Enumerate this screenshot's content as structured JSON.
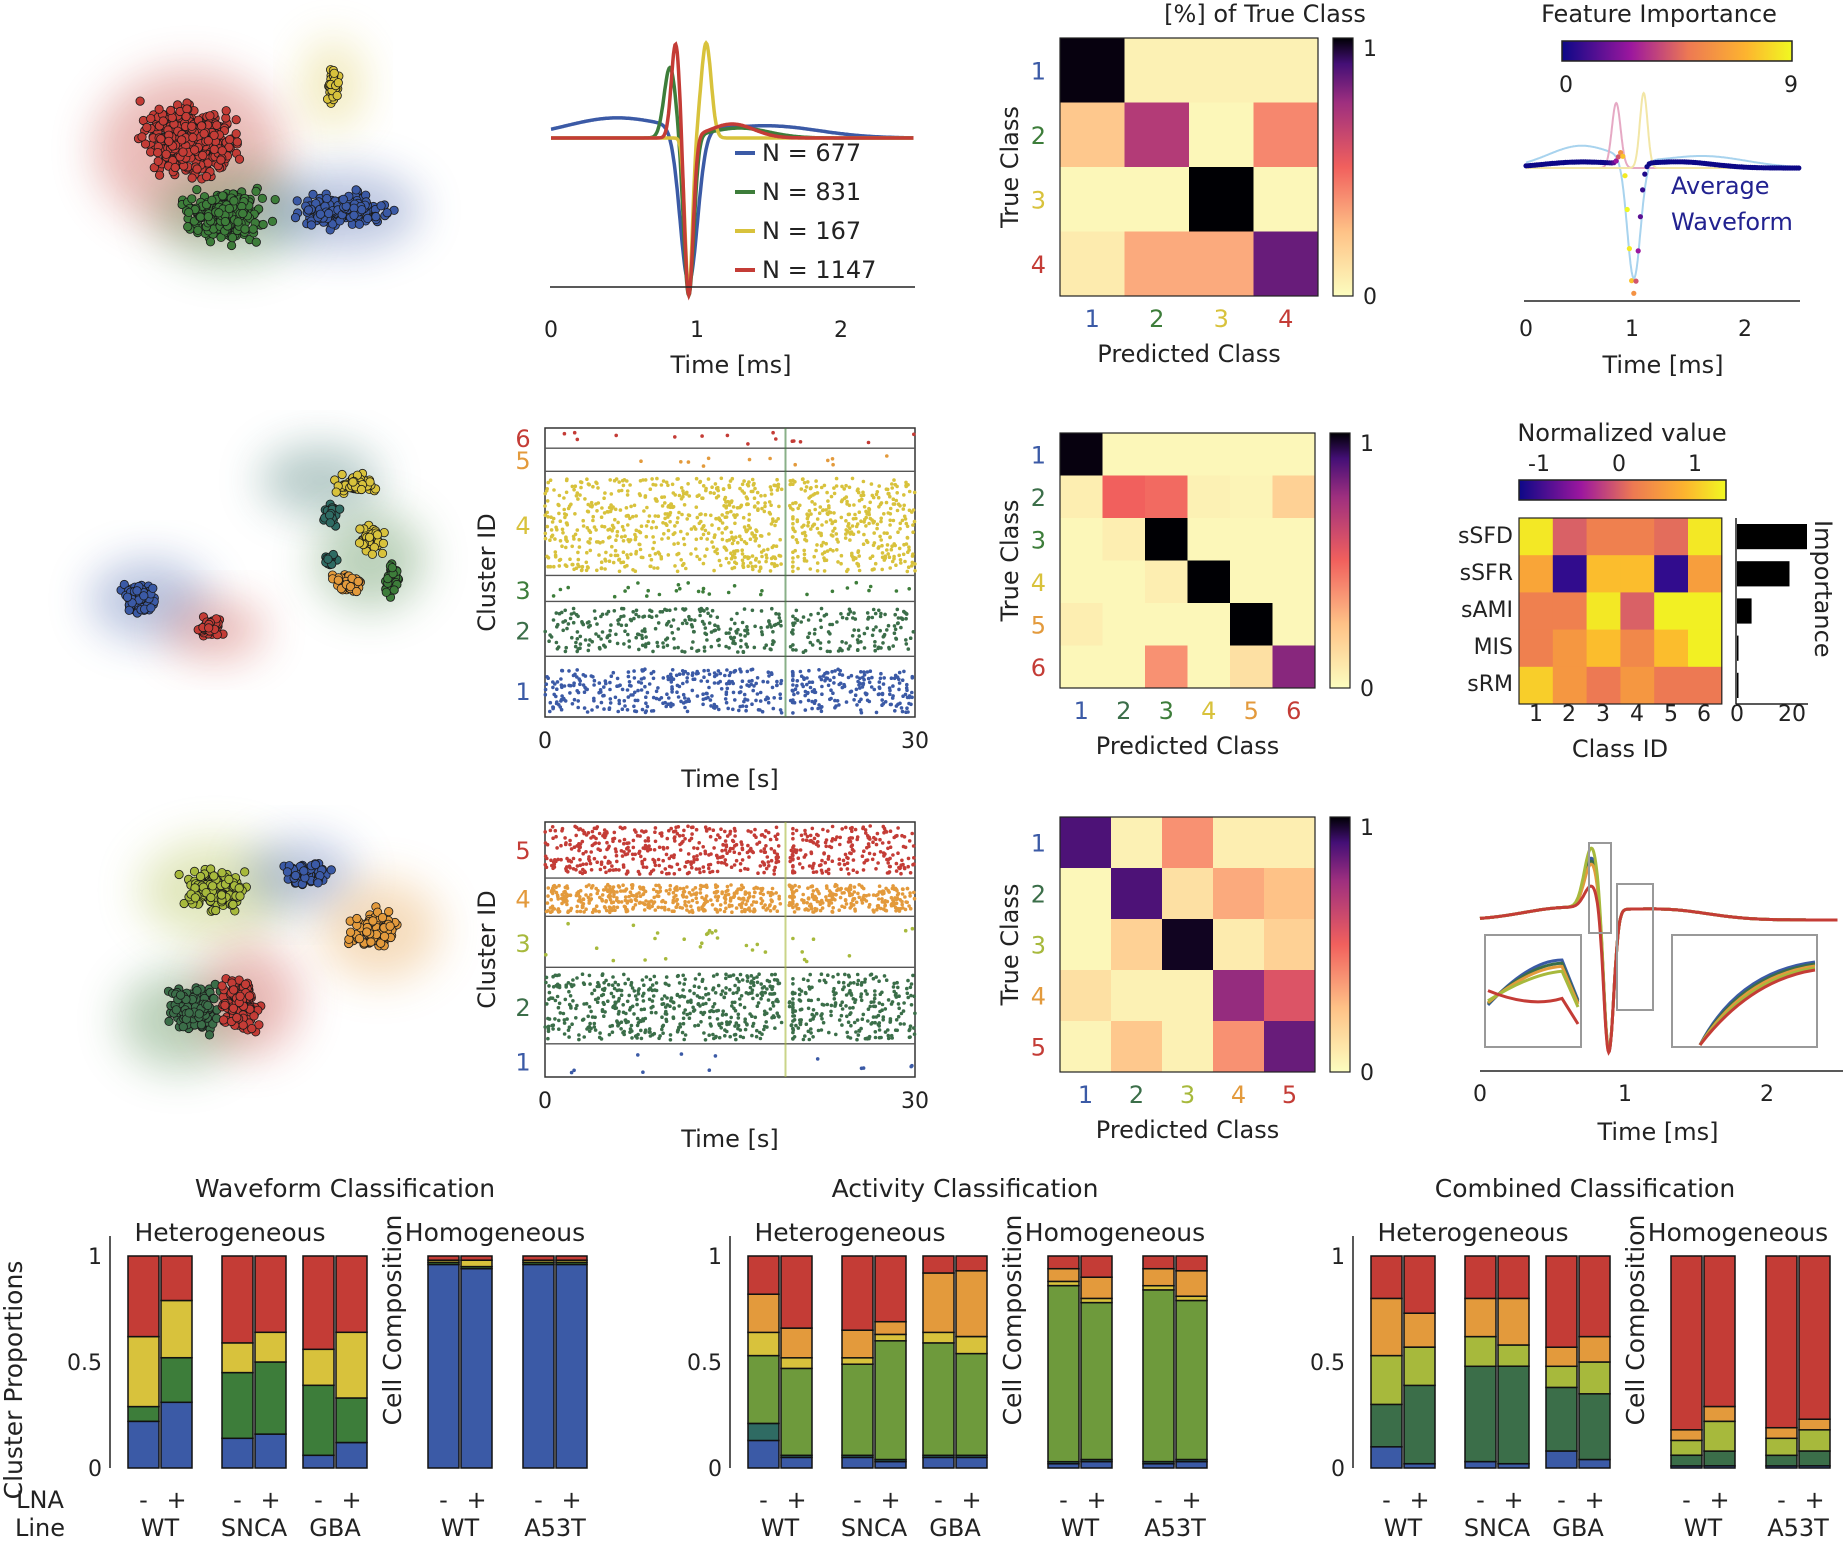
{
  "colors": {
    "blue": "#3b5aa6",
    "green": "#3d7d3a",
    "yellow": "#d8c23c",
    "red": "#c43c36",
    "orange": "#e39a3c",
    "teal": "#2f6b63",
    "dkgreen": "#3b6e49",
    "lime": "#a7b93c",
    "actgreen": "#6e9a3c",
    "navy": "#222290"
  },
  "waveform": {
    "xlabel": "Time [ms]",
    "xticks": [
      "0",
      "1",
      "2"
    ],
    "legend": [
      "N = 677",
      "N = 831",
      "N = 167",
      "N = 1147"
    ]
  },
  "feature_importance": {
    "title": "Feature Importance",
    "cbar_ticks": [
      "0",
      "9"
    ],
    "annotation": [
      "Average",
      "Waveform"
    ],
    "xlabel": "Time [ms]",
    "xticks": [
      "0",
      "1",
      "2"
    ]
  },
  "confusion_common": {
    "title1": "[% ] of True Class",
    "xlabel": "Predicted Class",
    "ylabel": "True Class",
    "cbar_ticks": [
      "1",
      "0"
    ]
  },
  "raster": {
    "ylabel": "Cluster ID",
    "xlabel": "Time [s]",
    "xticks": [
      "0",
      "30"
    ]
  },
  "heatmap": {
    "title": "Normalized value",
    "cbar_ticks": [
      "-1",
      "0",
      "1"
    ],
    "rows": [
      "sSFD",
      "sSFR",
      "sAMI",
      "MIS",
      "sRM"
    ],
    "cols": [
      "1",
      "2",
      "3",
      "4",
      "5",
      "6"
    ],
    "xlabel": "Class ID",
    "imp_label": "Importance",
    "imp_ticks": [
      "0",
      "20"
    ]
  },
  "inset_wave": {
    "xlabel": "Time [ms]",
    "xticks": [
      "0",
      "1",
      "2"
    ]
  },
  "bar_common": {
    "heterogeneous": "Heterogeneous",
    "homogeneous": "Homogeneous",
    "ylabel": "Cluster Proportions",
    "ylabel2": "Cell Composition",
    "yticks": [
      "1",
      "0.5",
      "0"
    ],
    "lna_label": "LNA",
    "line_label": "Line",
    "signs": [
      "-",
      "+"
    ],
    "lines": [
      "WT",
      "SNCA",
      "GBA",
      "WT",
      "A53T"
    ]
  },
  "chart_data": [
    {
      "type": "scatter",
      "title": "",
      "series": [
        {
          "name": "1"
        },
        {
          "name": "2"
        },
        {
          "name": "3"
        },
        {
          "name": "4"
        }
      ]
    },
    {
      "type": "line",
      "xlabel": "Time [ms]",
      "xlim": [
        0,
        2.5
      ],
      "series": [
        {
          "name": "N = 677",
          "color": "blue"
        },
        {
          "name": "N = 831",
          "color": "green"
        },
        {
          "name": "N = 167",
          "color": "yellow"
        },
        {
          "name": "N = 1147",
          "color": "red"
        }
      ]
    },
    {
      "type": "heatmap",
      "title": "[%] of True Class",
      "xlabel": "Predicted Class",
      "ylabel": "True Class",
      "labels": [
        "1",
        "2",
        "3",
        "4"
      ],
      "label_colors": [
        "blue",
        "green",
        "yellow",
        "red"
      ],
      "values": [
        [
          0.98,
          0.04,
          0.04,
          0.04
        ],
        [
          0.18,
          0.55,
          0.02,
          0.32
        ],
        [
          0.02,
          0.02,
          1.0,
          0.02
        ],
        [
          0.06,
          0.25,
          0.25,
          0.72
        ]
      ],
      "clim": [
        0,
        1
      ]
    },
    {
      "type": "line",
      "title": "Feature Importance",
      "xlabel": "Time [ms]",
      "clim": [
        0,
        9
      ],
      "annotation": "Average Waveform"
    },
    {
      "type": "scatter",
      "title": "",
      "series": [
        {
          "name": "1"
        },
        {
          "name": "2"
        },
        {
          "name": "3"
        },
        {
          "name": "4"
        },
        {
          "name": "5"
        },
        {
          "name": "6"
        }
      ]
    },
    {
      "type": "scatter",
      "xlabel": "Time [s]",
      "ylabel": "Cluster ID",
      "xlim": [
        0,
        30
      ],
      "rows": [
        "1",
        "2",
        "3",
        "4",
        "5",
        "6"
      ],
      "row_colors": [
        "blue",
        "dkgreen",
        "green",
        "yellow",
        "orange",
        "red"
      ]
    },
    {
      "type": "heatmap",
      "xlabel": "Predicted Class",
      "ylabel": "True Class",
      "labels": [
        "1",
        "2",
        "3",
        "4",
        "5",
        "6"
      ],
      "label_colors": [
        "blue",
        "dkgreen",
        "green",
        "yellow",
        "orange",
        "red"
      ],
      "values": [
        [
          0.98,
          0.02,
          0.02,
          0.02,
          0.02,
          0.02
        ],
        [
          0.05,
          0.4,
          0.38,
          0.04,
          0.03,
          0.15
        ],
        [
          0.02,
          0.05,
          1.0,
          0.02,
          0.02,
          0.02
        ],
        [
          0.02,
          0.02,
          0.05,
          1.0,
          0.02,
          0.02
        ],
        [
          0.05,
          0.02,
          0.02,
          0.02,
          1.0,
          0.02
        ],
        [
          0.02,
          0.02,
          0.3,
          0.02,
          0.1,
          0.65
        ]
      ],
      "clim": [
        0,
        1
      ]
    },
    {
      "type": "heatmap",
      "title": "Normalized value",
      "xlabel": "Class ID",
      "rows": [
        "sSFD",
        "sSFR",
        "sAMI",
        "MIS",
        "sRM"
      ],
      "cols": [
        "1",
        "2",
        "3",
        "4",
        "5",
        "6"
      ],
      "values": [
        [
          1.4,
          -0.2,
          0.1,
          0.1,
          -0.1,
          1.4
        ],
        [
          0.6,
          -1.4,
          0.9,
          0.9,
          -1.4,
          0.5
        ],
        [
          0.1,
          0.1,
          1.4,
          -0.2,
          1.5,
          1.5
        ],
        [
          0.1,
          0.4,
          0.9,
          0.2,
          0.9,
          1.5
        ],
        [
          1.1,
          0.4,
          0.0,
          0.4,
          0.0,
          0.0
        ]
      ],
      "clim": [
        -1.6,
        1.6
      ],
      "importance": [
        24,
        18,
        5,
        0.5,
        0.3
      ],
      "importance_xlim": [
        0,
        24
      ]
    },
    {
      "type": "scatter",
      "title": "",
      "series": [
        {
          "name": "1"
        },
        {
          "name": "2"
        },
        {
          "name": "3"
        },
        {
          "name": "4"
        },
        {
          "name": "5"
        }
      ]
    },
    {
      "type": "scatter",
      "xlabel": "Time [s]",
      "ylabel": "Cluster ID",
      "xlim": [
        0,
        30
      ],
      "rows": [
        "1",
        "2",
        "3",
        "4",
        "5"
      ],
      "row_colors": [
        "blue",
        "dkgreen",
        "lime",
        "orange",
        "red"
      ]
    },
    {
      "type": "heatmap",
      "xlabel": "Predicted Class",
      "ylabel": "True Class",
      "labels": [
        "1",
        "2",
        "3",
        "4",
        "5"
      ],
      "label_colors": [
        "blue",
        "dkgreen",
        "lime",
        "orange",
        "red"
      ],
      "values": [
        [
          0.78,
          0.04,
          0.3,
          0.05,
          0.05
        ],
        [
          0.02,
          0.78,
          0.1,
          0.25,
          0.2
        ],
        [
          0.02,
          0.15,
          0.95,
          0.06,
          0.15
        ],
        [
          0.1,
          0.04,
          0.04,
          0.62,
          0.45
        ],
        [
          0.03,
          0.18,
          0.04,
          0.3,
          0.72
        ]
      ],
      "clim": [
        0,
        1
      ]
    },
    {
      "type": "line",
      "xlabel": "Time [ms]",
      "xlim": [
        0,
        2.3
      ]
    },
    {
      "type": "bar",
      "title": "Waveform Classification",
      "ylabel": "Cluster Proportions",
      "ylim": [
        0,
        1
      ],
      "stack_colors": [
        "blue",
        "green",
        "yellow",
        "red"
      ],
      "bars": [
        [
          0.22,
          0.07,
          0.33,
          0.38
        ],
        [
          0.31,
          0.21,
          0.27,
          0.21
        ],
        [
          0.14,
          0.31,
          0.14,
          0.41
        ],
        [
          0.16,
          0.34,
          0.14,
          0.36
        ],
        [
          0.06,
          0.33,
          0.17,
          0.44
        ],
        [
          0.12,
          0.21,
          0.31,
          0.36
        ],
        [
          0.96,
          0.01,
          0.01,
          0.02
        ],
        [
          0.94,
          0.01,
          0.03,
          0.02
        ],
        [
          0.96,
          0.01,
          0.01,
          0.02
        ],
        [
          0.96,
          0.01,
          0.01,
          0.02
        ]
      ]
    },
    {
      "type": "bar",
      "title": "Activity Classification",
      "ylabel": "Cell Composition",
      "ylim": [
        0,
        1
      ],
      "stack_colors": [
        "blue",
        "teal",
        "actgreen",
        "yellow",
        "orange",
        "red"
      ],
      "bars": [
        [
          0.13,
          0.08,
          0.32,
          0.11,
          0.18,
          0.18
        ],
        [
          0.05,
          0.01,
          0.41,
          0.05,
          0.14,
          0.34
        ],
        [
          0.05,
          0.01,
          0.43,
          0.03,
          0.13,
          0.35
        ],
        [
          0.03,
          0.01,
          0.56,
          0.03,
          0.06,
          0.31
        ],
        [
          0.05,
          0.01,
          0.53,
          0.05,
          0.28,
          0.08
        ],
        [
          0.05,
          0.01,
          0.48,
          0.08,
          0.31,
          0.07
        ],
        [
          0.02,
          0.01,
          0.83,
          0.02,
          0.06,
          0.06
        ],
        [
          0.03,
          0.01,
          0.74,
          0.02,
          0.1,
          0.1
        ],
        [
          0.02,
          0.01,
          0.81,
          0.02,
          0.08,
          0.06
        ],
        [
          0.03,
          0.01,
          0.75,
          0.02,
          0.12,
          0.07
        ]
      ]
    },
    {
      "type": "bar",
      "title": "Combined Classification",
      "ylim": [
        0,
        1
      ],
      "stack_colors": [
        "blue",
        "dkgreen",
        "lime",
        "orange",
        "red"
      ],
      "bars": [
        [
          0.1,
          0.2,
          0.23,
          0.27,
          0.2
        ],
        [
          0.02,
          0.37,
          0.18,
          0.16,
          0.27
        ],
        [
          0.03,
          0.45,
          0.14,
          0.18,
          0.2
        ],
        [
          0.02,
          0.46,
          0.1,
          0.22,
          0.2
        ],
        [
          0.08,
          0.3,
          0.1,
          0.09,
          0.43
        ],
        [
          0.04,
          0.31,
          0.15,
          0.12,
          0.38
        ],
        [
          0.01,
          0.05,
          0.07,
          0.05,
          0.82
        ],
        [
          0.01,
          0.07,
          0.14,
          0.07,
          0.71
        ],
        [
          0.01,
          0.05,
          0.08,
          0.05,
          0.81
        ],
        [
          0.01,
          0.07,
          0.1,
          0.05,
          0.77
        ]
      ]
    }
  ]
}
